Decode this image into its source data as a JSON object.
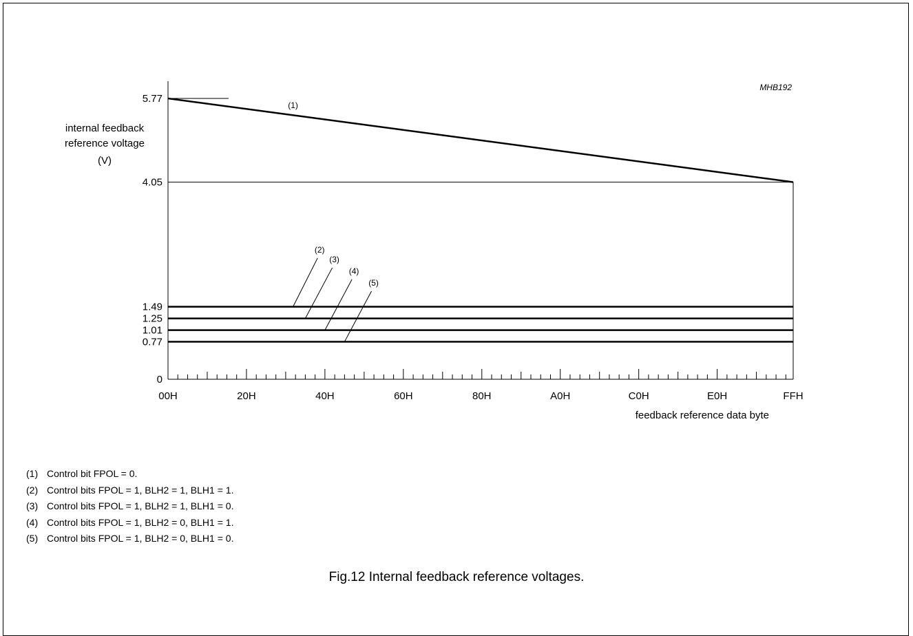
{
  "figure": {
    "code": "MHB192",
    "caption": "Fig.12  Internal feedback reference voltages."
  },
  "chart_data": {
    "type": "line",
    "ylabel_lines": [
      "internal feedback",
      "reference voltage",
      "(V)"
    ],
    "xlabel": "feedback reference data byte",
    "x_ticks": [
      {
        "label": "00H",
        "value": 0
      },
      {
        "label": "20H",
        "value": 32
      },
      {
        "label": "40H",
        "value": 64
      },
      {
        "label": "60H",
        "value": 96
      },
      {
        "label": "80H",
        "value": 128
      },
      {
        "label": "A0H",
        "value": 160
      },
      {
        "label": "C0H",
        "value": 192
      },
      {
        "label": "E0H",
        "value": 224
      },
      {
        "label": "FFH",
        "value": 255
      }
    ],
    "y_ticks": [
      {
        "label": "0",
        "value": 0
      },
      {
        "label": "0.77",
        "value": 0.77
      },
      {
        "label": "1.01",
        "value": 1.01
      },
      {
        "label": "1.25",
        "value": 1.25
      },
      {
        "label": "1.49",
        "value": 1.49
      },
      {
        "label": "4.05",
        "value": 4.05
      },
      {
        "label": "5.77",
        "value": 5.77
      }
    ],
    "xlim": [
      0,
      255
    ],
    "ylim": [
      0,
      5.77
    ],
    "series": [
      {
        "label": "(1)",
        "x": [
          0,
          255
        ],
        "y": [
          5.77,
          4.05
        ],
        "label_x": 51,
        "label_y": 5.57
      },
      {
        "label": "(2)",
        "x": [
          0,
          255
        ],
        "y": [
          1.49,
          1.49
        ],
        "leader": [
          [
            51,
            1.49
          ],
          [
            61,
            2.49
          ]
        ]
      },
      {
        "label": "(3)",
        "x": [
          0,
          255
        ],
        "y": [
          1.25,
          1.25
        ],
        "leader": [
          [
            56,
            1.25
          ],
          [
            67,
            2.29
          ]
        ]
      },
      {
        "label": "(4)",
        "x": [
          0,
          255
        ],
        "y": [
          1.01,
          1.01
        ],
        "leader": [
          [
            64,
            1.01
          ],
          [
            75,
            2.05
          ]
        ]
      },
      {
        "label": "(5)",
        "x": [
          0,
          255
        ],
        "y": [
          0.77,
          0.77
        ],
        "leader": [
          [
            72,
            0.77
          ],
          [
            83,
            1.81
          ]
        ]
      }
    ]
  },
  "notes": [
    {
      "num": "(1)",
      "text": "Control bit FPOL = 0."
    },
    {
      "num": "(2)",
      "text": "Control bits FPOL = 1, BLH2 = 1, BLH1 = 1."
    },
    {
      "num": "(3)",
      "text": "Control bits FPOL = 1, BLH2 = 1, BLH1 = 0."
    },
    {
      "num": "(4)",
      "text": "Control bits FPOL = 1, BLH2 = 0, BLH1 = 1."
    },
    {
      "num": "(5)",
      "text": "Control bits FPOL = 1, BLH2 = 0, BLH1 = 0."
    }
  ]
}
